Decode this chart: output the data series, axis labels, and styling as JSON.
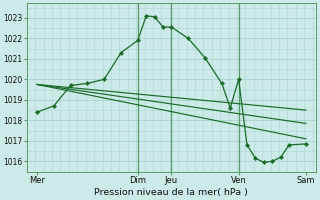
{
  "xlabel": "Pression niveau de la mer( hPa )",
  "bg_color": "#cceae7",
  "grid_major_color": "#aad6d2",
  "grid_minor_color": "#bde3e0",
  "line_color": "#1a6b2a",
  "ylim": [
    1015.5,
    1023.7
  ],
  "xlim": [
    -0.3,
    8.3
  ],
  "yticks": [
    1016,
    1017,
    1018,
    1019,
    1020,
    1021,
    1022,
    1023
  ],
  "xtick_positions": [
    0,
    3.0,
    4.0,
    6.0,
    8.0
  ],
  "xtick_labels": [
    "Mer",
    "Dim",
    "Jeu",
    "Ven",
    "Sam"
  ],
  "vlines": [
    3.0,
    4.0,
    6.0
  ],
  "series1": {
    "x": [
      0.0,
      0.5,
      1.0,
      1.5,
      2.0,
      2.5,
      3.0,
      3.25,
      3.5,
      3.75,
      4.0,
      4.5,
      5.0,
      5.5,
      5.75,
      6.0,
      6.25,
      6.5,
      6.75,
      7.0,
      7.25,
      7.5,
      8.0
    ],
    "y": [
      1018.4,
      1018.7,
      1019.7,
      1019.8,
      1020.0,
      1021.3,
      1021.9,
      1023.1,
      1023.05,
      1022.55,
      1022.55,
      1022.0,
      1021.05,
      1019.8,
      1018.6,
      1020.0,
      1016.8,
      1016.15,
      1015.95,
      1016.0,
      1016.2,
      1016.8,
      1016.85
    ]
  },
  "series2": {
    "x": [
      0.0,
      8.0
    ],
    "y": [
      1019.75,
      1018.5
    ]
  },
  "series3": {
    "x": [
      0.0,
      8.0
    ],
    "y": [
      1019.75,
      1017.1
    ]
  },
  "series4": {
    "x": [
      0.0,
      8.0
    ],
    "y": [
      1019.75,
      1017.85
    ]
  },
  "figsize": [
    3.2,
    2.0
  ],
  "dpi": 100
}
